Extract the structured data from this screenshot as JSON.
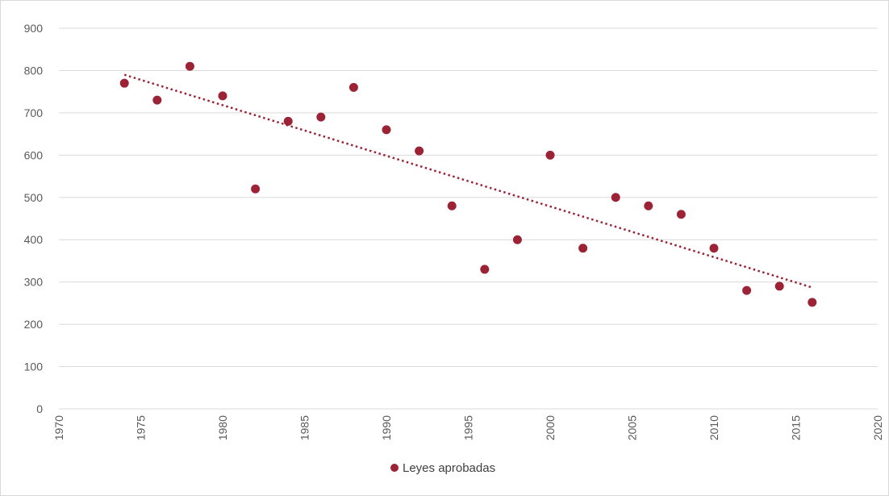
{
  "chart_data": {
    "type": "scatter",
    "title": "",
    "xlabel": "",
    "ylabel": "",
    "xlim": [
      1970,
      2020
    ],
    "ylim": [
      0,
      900
    ],
    "x_ticks": [
      1970,
      1975,
      1980,
      1985,
      1990,
      1995,
      2000,
      2005,
      2010,
      2015,
      2020
    ],
    "y_ticks": [
      0,
      100,
      200,
      300,
      400,
      500,
      600,
      700,
      800,
      900
    ],
    "grid": "horizontal",
    "legend_position": "bottom",
    "series": [
      {
        "name": "Leyes aprobadas",
        "color": "#9b2335",
        "points": [
          {
            "x": 1974,
            "y": 770
          },
          {
            "x": 1976,
            "y": 730
          },
          {
            "x": 1978,
            "y": 810
          },
          {
            "x": 1980,
            "y": 740
          },
          {
            "x": 1982,
            "y": 520
          },
          {
            "x": 1984,
            "y": 680
          },
          {
            "x": 1986,
            "y": 690
          },
          {
            "x": 1988,
            "y": 760
          },
          {
            "x": 1990,
            "y": 660
          },
          {
            "x": 1992,
            "y": 610
          },
          {
            "x": 1994,
            "y": 480
          },
          {
            "x": 1996,
            "y": 330
          },
          {
            "x": 1998,
            "y": 400
          },
          {
            "x": 2000,
            "y": 600
          },
          {
            "x": 2002,
            "y": 380
          },
          {
            "x": 2004,
            "y": 500
          },
          {
            "x": 2006,
            "y": 480
          },
          {
            "x": 2008,
            "y": 460
          },
          {
            "x": 2010,
            "y": 380
          },
          {
            "x": 2012,
            "y": 280
          },
          {
            "x": 2014,
            "y": 290
          },
          {
            "x": 2016,
            "y": 252
          }
        ]
      }
    ],
    "trendline": {
      "type": "linear",
      "style": "dotted",
      "color": "#9b2335",
      "x_start": 1974,
      "y_start": 790,
      "x_end": 2016,
      "y_end": 287
    }
  }
}
